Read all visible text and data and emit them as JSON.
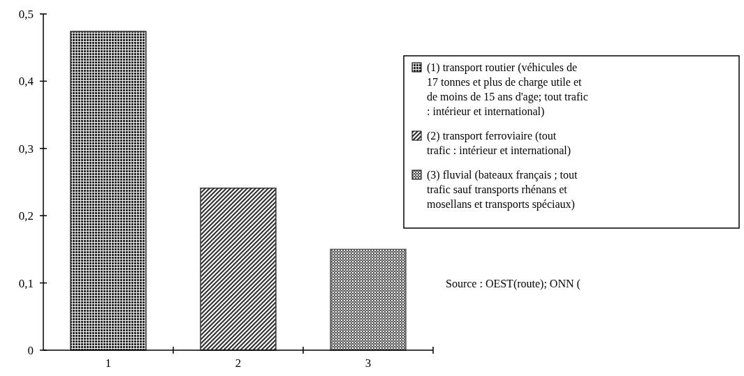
{
  "chart_data": {
    "type": "bar",
    "categories": [
      "1",
      "2",
      "3"
    ],
    "series": [
      {
        "name": "(1) transport routier (véhicules de 17 tonnes et plus de charge utile et de moins de 15 ans d'age; tout trafic : intérieur et international)",
        "color": "#2a2a2a",
        "values": [
          0.474,
          null,
          null
        ]
      },
      {
        "name": "(2) transport ferroviaire (tout trafic : intérieur et international)",
        "color": "#333333",
        "values": [
          null,
          0.241,
          null
        ]
      },
      {
        "name": "(3) fluvial (bateaux français ; tout trafic sauf transports rhénans et mosellans et transports spéciaux)",
        "color": "#555555",
        "values": [
          null,
          null,
          0.15
        ]
      }
    ],
    "ylim": [
      0,
      0.5
    ],
    "yticks": [
      0,
      {
        "value": 0.1,
        "label": "0,1"
      },
      {
        "value": 0.2,
        "label": "0,2"
      },
      {
        "value": 0.3,
        "label": "0,3"
      },
      {
        "value": 0.4,
        "label": "0,4"
      },
      {
        "value": 0.5,
        "label": "0,5"
      }
    ],
    "legend": "right",
    "grid": false,
    "annotations": [
      "Source : OEST(route); ONN ("
    ]
  }
}
